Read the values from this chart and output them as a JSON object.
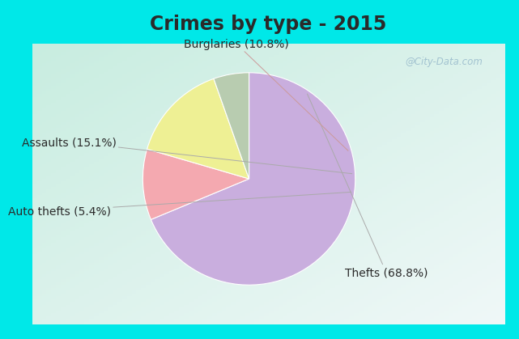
{
  "title": "Crimes by type - 2015",
  "slices": [
    {
      "label": "Thefts (68.8%)",
      "value": 68.8,
      "color": "#c9aede"
    },
    {
      "label": "Burglaries (10.8%)",
      "value": 10.8,
      "color": "#f4a9b0"
    },
    {
      "label": "Assaults (15.1%)",
      "value": 15.1,
      "color": "#eef094"
    },
    {
      "label": "Auto thefts (5.4%)",
      "value": 5.4,
      "color": "#b8ccb0"
    }
  ],
  "background_top_color": "#00e8e8",
  "background_body_color": "#c8ede0",
  "title_fontsize": 17,
  "label_fontsize": 10,
  "watermark": "@City-Data.com",
  "title_color": "#2a2a2a"
}
